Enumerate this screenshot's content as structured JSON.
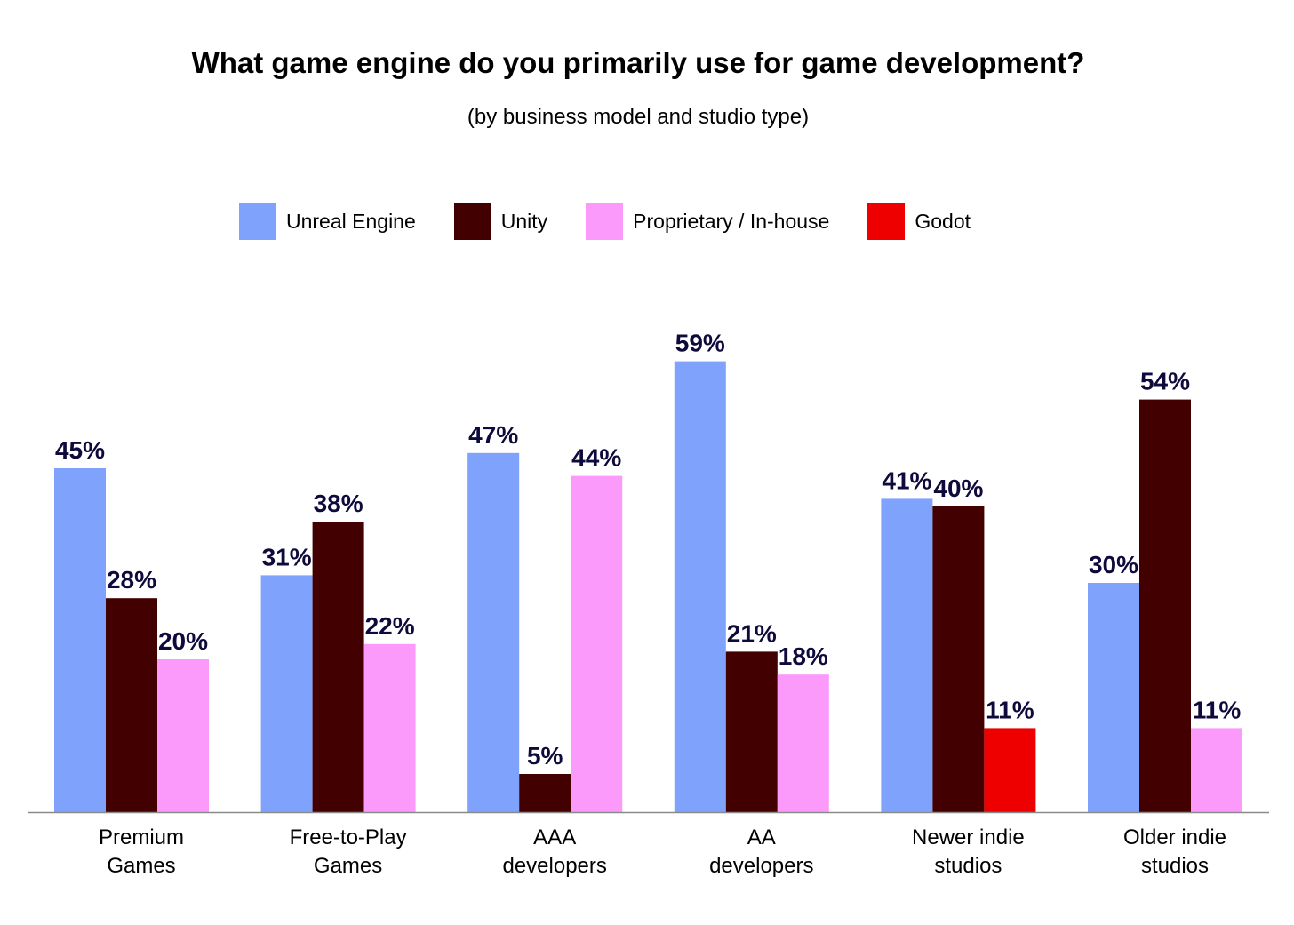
{
  "chart_data": {
    "type": "bar",
    "title": "What game engine do you primarily use for game development?",
    "subtitle": "(by business model and studio type)",
    "categories": [
      [
        "Premium",
        "Games"
      ],
      [
        "Free-to-Play",
        "Games"
      ],
      [
        "AAA",
        "developers"
      ],
      [
        "AA",
        "developers"
      ],
      [
        "Newer indie",
        "studios"
      ],
      [
        "Older indie",
        "studios"
      ]
    ],
    "series": [
      {
        "name": "Unreal Engine",
        "color": "#7fa2fc",
        "values": [
          45,
          31,
          47,
          59,
          41,
          30
        ]
      },
      {
        "name": "Unity",
        "color": "#420000",
        "values": [
          28,
          38,
          5,
          21,
          40,
          54
        ]
      },
      {
        "name": "Proprietary / In-house",
        "color": "#fc9afc",
        "values": [
          20,
          22,
          44,
          18,
          null,
          11
        ]
      },
      {
        "name": "Godot",
        "color": "#ee0000",
        "values": [
          null,
          null,
          null,
          null,
          11,
          null
        ]
      }
    ],
    "value_suffix": "%",
    "ylim": [
      0,
      60
    ],
    "xlabel": "",
    "ylabel": "",
    "grid": false,
    "legend_position": "top"
  }
}
